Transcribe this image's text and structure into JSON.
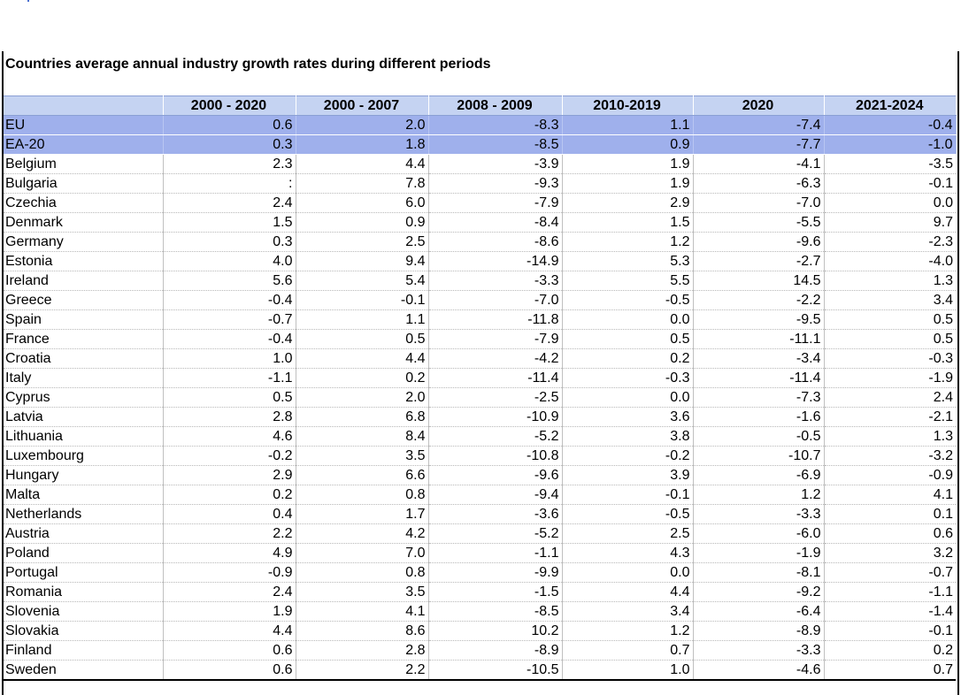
{
  "title": "Countries average annual industry growth rates during different periods",
  "chart_data": {
    "type": "table",
    "title": "Countries average annual industry growth rates during different periods",
    "columns": [
      "2000 - 2020",
      "2000 - 2007",
      "2008 - 2009",
      "2010-2019",
      "2020",
      "2021-2024"
    ],
    "highlighted_rows": [
      "EU",
      "EA-20"
    ],
    "rows": [
      {
        "country": "EU",
        "values": [
          "0.6",
          "2.0",
          "-8.3",
          "1.1",
          "-7.4",
          "-0.4"
        ]
      },
      {
        "country": "EA-20",
        "values": [
          "0.3",
          "1.8",
          "-8.5",
          "0.9",
          "-7.7",
          "-1.0"
        ]
      },
      {
        "country": "Belgium",
        "values": [
          "2.3",
          "4.4",
          "-3.9",
          "1.9",
          "-4.1",
          "-3.5"
        ]
      },
      {
        "country": "Bulgaria",
        "values": [
          ":",
          "7.8",
          "-9.3",
          "1.9",
          "-6.3",
          "-0.1"
        ]
      },
      {
        "country": "Czechia",
        "values": [
          "2.4",
          "6.0",
          "-7.9",
          "2.9",
          "-7.0",
          "0.0"
        ]
      },
      {
        "country": "Denmark",
        "values": [
          "1.5",
          "0.9",
          "-8.4",
          "1.5",
          "-5.5",
          "9.7"
        ]
      },
      {
        "country": "Germany",
        "values": [
          "0.3",
          "2.5",
          "-8.6",
          "1.2",
          "-9.6",
          "-2.3"
        ]
      },
      {
        "country": "Estonia",
        "values": [
          "4.0",
          "9.4",
          "-14.9",
          "5.3",
          "-2.7",
          "-4.0"
        ]
      },
      {
        "country": "Ireland",
        "values": [
          "5.6",
          "5.4",
          "-3.3",
          "5.5",
          "14.5",
          "1.3"
        ]
      },
      {
        "country": "Greece",
        "values": [
          "-0.4",
          "-0.1",
          "-7.0",
          "-0.5",
          "-2.2",
          "3.4"
        ]
      },
      {
        "country": "Spain",
        "values": [
          "-0.7",
          "1.1",
          "-11.8",
          "0.0",
          "-9.5",
          "0.5"
        ]
      },
      {
        "country": "France",
        "values": [
          "-0.4",
          "0.5",
          "-7.9",
          "0.5",
          "-11.1",
          "0.5"
        ]
      },
      {
        "country": "Croatia",
        "values": [
          "1.0",
          "4.4",
          "-4.2",
          "0.2",
          "-3.4",
          "-0.3"
        ]
      },
      {
        "country": "Italy",
        "values": [
          "-1.1",
          "0.2",
          "-11.4",
          "-0.3",
          "-11.4",
          "-1.9"
        ]
      },
      {
        "country": "Cyprus",
        "values": [
          "0.5",
          "2.0",
          "-2.5",
          "0.0",
          "-7.3",
          "2.4"
        ]
      },
      {
        "country": "Latvia",
        "values": [
          "2.8",
          "6.8",
          "-10.9",
          "3.6",
          "-1.6",
          "-2.1"
        ]
      },
      {
        "country": "Lithuania",
        "values": [
          "4.6",
          "8.4",
          "-5.2",
          "3.8",
          "-0.5",
          "1.3"
        ]
      },
      {
        "country": "Luxembourg",
        "values": [
          "-0.2",
          "3.5",
          "-10.8",
          "-0.2",
          "-10.7",
          "-3.2"
        ]
      },
      {
        "country": "Hungary",
        "values": [
          "2.9",
          "6.6",
          "-9.6",
          "3.9",
          "-6.9",
          "-0.9"
        ]
      },
      {
        "country": "Malta",
        "values": [
          "0.2",
          "0.8",
          "-9.4",
          "-0.1",
          "1.2",
          "4.1"
        ]
      },
      {
        "country": "Netherlands",
        "values": [
          "0.4",
          "1.7",
          "-3.6",
          "-0.5",
          "-3.3",
          "0.1"
        ]
      },
      {
        "country": "Austria",
        "values": [
          "2.2",
          "4.2",
          "-5.2",
          "2.5",
          "-6.0",
          "0.6"
        ]
      },
      {
        "country": "Poland",
        "values": [
          "4.9",
          "7.0",
          "-1.1",
          "4.3",
          "-1.9",
          "3.2"
        ]
      },
      {
        "country": "Portugal",
        "values": [
          "-0.9",
          "0.8",
          "-9.9",
          "0.0",
          "-8.1",
          "-0.7"
        ]
      },
      {
        "country": "Romania",
        "values": [
          "2.4",
          "3.5",
          "-1.5",
          "4.4",
          "-9.2",
          "-1.1"
        ]
      },
      {
        "country": "Slovenia",
        "values": [
          "1.9",
          "4.1",
          "-8.5",
          "3.4",
          "-6.4",
          "-1.4"
        ]
      },
      {
        "country": "Slovakia",
        "values": [
          "4.4",
          "8.6",
          "10.2",
          "1.2",
          "-8.9",
          "-0.1"
        ]
      },
      {
        "country": "Finland",
        "values": [
          "0.6",
          "2.8",
          "-8.9",
          "0.7",
          "-3.3",
          "0.2"
        ]
      },
      {
        "country": "Sweden",
        "values": [
          "0.6",
          "2.2",
          "-10.5",
          "1.0",
          "-4.6",
          "0.7"
        ]
      }
    ]
  }
}
